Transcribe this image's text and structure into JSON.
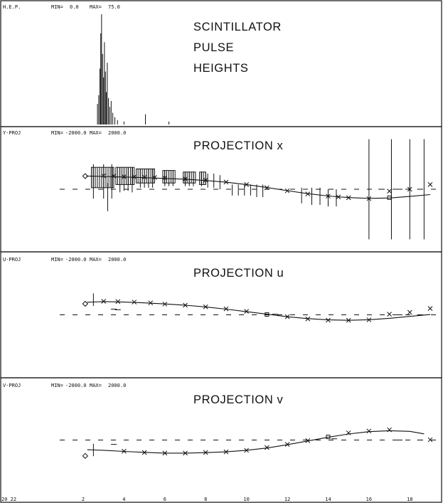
{
  "figure": {
    "x_axis": {
      "min": 2,
      "max": 19,
      "ticks": [
        2,
        4,
        6,
        8,
        10,
        12,
        14,
        16,
        18
      ],
      "left_label": "20 22"
    }
  },
  "chart_data": [
    {
      "type": "bar",
      "header": {
        "name": "H.E.P.",
        "min_label": "MIN=",
        "min": "0.0",
        "max_label": "MAX=",
        "max": "75.0"
      },
      "title_lines": [
        "SCINTILLATOR",
        "PULSE",
        "HEIGHTS"
      ],
      "ylim": [
        0,
        75
      ],
      "bars": [
        {
          "x": 2.7,
          "y": 14
        },
        {
          "x": 2.76,
          "y": 20
        },
        {
          "x": 2.82,
          "y": 38
        },
        {
          "x": 2.86,
          "y": 62
        },
        {
          "x": 2.9,
          "y": 75
        },
        {
          "x": 2.95,
          "y": 48
        },
        {
          "x": 3.0,
          "y": 32
        },
        {
          "x": 3.04,
          "y": 56
        },
        {
          "x": 3.09,
          "y": 36
        },
        {
          "x": 3.13,
          "y": 22
        },
        {
          "x": 3.18,
          "y": 42
        },
        {
          "x": 3.24,
          "y": 18
        },
        {
          "x": 3.3,
          "y": 12
        },
        {
          "x": 3.37,
          "y": 16
        },
        {
          "x": 3.45,
          "y": 8
        },
        {
          "x": 3.55,
          "y": 5
        },
        {
          "x": 3.68,
          "y": 3
        },
        {
          "x": 4.0,
          "y": 2
        },
        {
          "x": 5.05,
          "y": 7
        },
        {
          "x": 6.2,
          "y": 2
        }
      ]
    },
    {
      "type": "line",
      "header": {
        "name": "Y-PROJ",
        "min_label": "MIN=",
        "min": "-2000.0",
        "max_label": "MAX=",
        "max": "2000.0"
      },
      "title": "PROJECTION x",
      "ylim": [
        -2000,
        2000
      ],
      "zero_line": 0,
      "curve": [
        {
          "x": 2.2,
          "y": 420
        },
        {
          "x": 3.0,
          "y": 410
        },
        {
          "x": 4.0,
          "y": 390
        },
        {
          "x": 5.0,
          "y": 370
        },
        {
          "x": 6.0,
          "y": 345
        },
        {
          "x": 7.0,
          "y": 320
        },
        {
          "x": 8.0,
          "y": 280
        },
        {
          "x": 9.0,
          "y": 225
        },
        {
          "x": 10.0,
          "y": 150
        },
        {
          "x": 11.0,
          "y": 55
        },
        {
          "x": 12.0,
          "y": -45
        },
        {
          "x": 13.0,
          "y": -140
        },
        {
          "x": 14.0,
          "y": -215
        },
        {
          "x": 15.0,
          "y": -265
        },
        {
          "x": 16.0,
          "y": -290
        },
        {
          "x": 17.0,
          "y": -280
        },
        {
          "x": 18.0,
          "y": -230
        },
        {
          "x": 19.0,
          "y": -170
        }
      ],
      "points_x": [
        {
          "x": 3.0,
          "y": 430
        },
        {
          "x": 3.5,
          "y": 420
        },
        {
          "x": 4.0,
          "y": 400
        },
        {
          "x": 4.5,
          "y": 395
        },
        {
          "x": 5.0,
          "y": 385
        },
        {
          "x": 5.5,
          "y": 375
        },
        {
          "x": 6.0,
          "y": 360
        },
        {
          "x": 7.0,
          "y": 330
        },
        {
          "x": 8.0,
          "y": 290
        },
        {
          "x": 9.0,
          "y": 230
        },
        {
          "x": 10.0,
          "y": 150
        },
        {
          "x": 11.0,
          "y": 50
        },
        {
          "x": 12.0,
          "y": -50
        },
        {
          "x": 13.0,
          "y": -150
        },
        {
          "x": 14.0,
          "y": -220
        },
        {
          "x": 14.5,
          "y": -245
        },
        {
          "x": 15.0,
          "y": -270
        },
        {
          "x": 16.0,
          "y": -300
        },
        {
          "x": 17.0,
          "y": -60
        },
        {
          "x": 18.0,
          "y": 0
        },
        {
          "x": 19.0,
          "y": 150
        }
      ],
      "points_square": [
        {
          "x": 17.0,
          "y": -270
        }
      ],
      "points_diamond": [
        {
          "x": 2.1,
          "y": 420
        }
      ],
      "dash_marks": [
        {
          "x": 2.3,
          "y": 420
        },
        {
          "x": 16.6,
          "y": 0
        },
        {
          "x": 17.5,
          "y": 0
        },
        {
          "x": 18.5,
          "y": 0
        }
      ],
      "error_bars": [
        {
          "x": 2.5,
          "lo": -300,
          "hi": 800
        },
        {
          "x": 3.0,
          "lo": -300,
          "hi": 800
        },
        {
          "x": 3.2,
          "lo": -700,
          "hi": 200
        },
        {
          "x": 3.4,
          "lo": -300,
          "hi": 800
        },
        {
          "x": 3.8,
          "lo": -100,
          "hi": 700
        },
        {
          "x": 4.0,
          "lo": -50,
          "hi": 700
        },
        {
          "x": 4.2,
          "lo": -50,
          "hi": 700
        },
        {
          "x": 4.4,
          "lo": -100,
          "hi": 700
        },
        {
          "x": 4.8,
          "lo": 50,
          "hi": 650
        },
        {
          "x": 5.0,
          "lo": 50,
          "hi": 650
        },
        {
          "x": 5.2,
          "lo": 50,
          "hi": 650
        },
        {
          "x": 5.4,
          "lo": 50,
          "hi": 650
        },
        {
          "x": 6.0,
          "lo": 100,
          "hi": 600
        },
        {
          "x": 6.2,
          "lo": 100,
          "hi": 600
        },
        {
          "x": 6.4,
          "lo": 100,
          "hi": 600
        },
        {
          "x": 7.0,
          "lo": 100,
          "hi": 550
        },
        {
          "x": 7.2,
          "lo": 100,
          "hi": 550
        },
        {
          "x": 7.4,
          "lo": 100,
          "hi": 550
        },
        {
          "x": 7.8,
          "lo": 100,
          "hi": 550
        },
        {
          "x": 8.1,
          "lo": 50,
          "hi": 500
        },
        {
          "x": 8.4,
          "lo": 50,
          "hi": 500
        },
        {
          "x": 8.7,
          "lo": 0,
          "hi": 450
        },
        {
          "x": 9.3,
          "lo": -200,
          "hi": 150
        },
        {
          "x": 9.6,
          "lo": -200,
          "hi": 150
        },
        {
          "x": 9.9,
          "lo": -200,
          "hi": 150
        },
        {
          "x": 10.2,
          "lo": -200,
          "hi": 150
        },
        {
          "x": 10.5,
          "lo": -250,
          "hi": 150
        },
        {
          "x": 10.8,
          "lo": -250,
          "hi": 150
        },
        {
          "x": 12.7,
          "lo": -450,
          "hi": 50
        },
        {
          "x": 13.2,
          "lo": -500,
          "hi": 50
        },
        {
          "x": 13.6,
          "lo": -500,
          "hi": 50
        },
        {
          "x": 14.0,
          "lo": -550,
          "hi": 0
        },
        {
          "x": 14.4,
          "lo": -550,
          "hi": 0
        },
        {
          "x": 16.0,
          "lo": -1600,
          "hi": 1600
        },
        {
          "x": 17.1,
          "lo": -1600,
          "hi": 1600
        },
        {
          "x": 18.0,
          "lo": -1600,
          "hi": 1600
        },
        {
          "x": 18.7,
          "lo": -1600,
          "hi": 1600
        }
      ],
      "bracket_regions": [
        {
          "x0": 2.4,
          "x1": 3.5,
          "y0": 50,
          "y1": 700
        },
        {
          "x0": 3.6,
          "x1": 4.5,
          "y0": 150,
          "y1": 700
        },
        {
          "x0": 4.6,
          "x1": 5.5,
          "y0": 200,
          "y1": 650
        },
        {
          "x0": 5.9,
          "x1": 6.5,
          "y0": 200,
          "y1": 600
        },
        {
          "x0": 6.9,
          "x1": 7.5,
          "y0": 200,
          "y1": 550
        },
        {
          "x0": 7.7,
          "x1": 8.0,
          "y0": 150,
          "y1": 550
        }
      ]
    },
    {
      "type": "line",
      "header": {
        "name": "U-PROJ",
        "min_label": "MIN=",
        "min": "-2000.0",
        "max_label": "MAX=",
        "max": "2000.0"
      },
      "title": "PROJECTION u",
      "ylim": [
        -2000,
        2000
      ],
      "zero_line": 0,
      "curve": [
        {
          "x": 2.2,
          "y": 400
        },
        {
          "x": 3.0,
          "y": 420
        },
        {
          "x": 4.0,
          "y": 405
        },
        {
          "x": 5.0,
          "y": 380
        },
        {
          "x": 6.0,
          "y": 345
        },
        {
          "x": 7.0,
          "y": 305
        },
        {
          "x": 8.0,
          "y": 250
        },
        {
          "x": 9.0,
          "y": 180
        },
        {
          "x": 10.0,
          "y": 100
        },
        {
          "x": 11.0,
          "y": 20
        },
        {
          "x": 12.0,
          "y": -60
        },
        {
          "x": 13.0,
          "y": -120
        },
        {
          "x": 14.0,
          "y": -160
        },
        {
          "x": 15.0,
          "y": -175
        },
        {
          "x": 16.0,
          "y": -155
        },
        {
          "x": 17.0,
          "y": -110
        },
        {
          "x": 18.0,
          "y": -50
        },
        {
          "x": 19.0,
          "y": 10
        }
      ],
      "points_x": [
        {
          "x": 3.0,
          "y": 430
        },
        {
          "x": 3.7,
          "y": 420
        },
        {
          "x": 4.5,
          "y": 405
        },
        {
          "x": 5.3,
          "y": 380
        },
        {
          "x": 6.0,
          "y": 340
        },
        {
          "x": 7.0,
          "y": 305
        },
        {
          "x": 8.0,
          "y": 255
        },
        {
          "x": 9.0,
          "y": 190
        },
        {
          "x": 10.0,
          "y": 110
        },
        {
          "x": 12.0,
          "y": -60
        },
        {
          "x": 13.0,
          "y": -130
        },
        {
          "x": 14.0,
          "y": -170
        },
        {
          "x": 15.0,
          "y": -175
        },
        {
          "x": 16.0,
          "y": -160
        },
        {
          "x": 17.0,
          "y": 20
        },
        {
          "x": 18.0,
          "y": 80
        },
        {
          "x": 19.0,
          "y": 200
        }
      ],
      "points_square": [
        {
          "x": 11.0,
          "y": 10
        }
      ],
      "points_diamond": [
        {
          "x": 2.1,
          "y": 350
        }
      ],
      "dash_marks": [
        {
          "x": 3.5,
          "y": 180
        },
        {
          "x": 3.7,
          "y": 160
        },
        {
          "x": 11.4,
          "y": 20
        },
        {
          "x": 17.5,
          "y": 0
        },
        {
          "x": 18.5,
          "y": 0
        }
      ],
      "error_bars": [
        {
          "x": 2.5,
          "lo": 280,
          "hi": 680
        }
      ],
      "bracket_regions": []
    },
    {
      "type": "line",
      "header": {
        "name": "V-PROJ",
        "min_label": "MIN=",
        "min": "-2000.0",
        "max_label": "MAX=",
        "max": "2000.0"
      },
      "title": "PROJECTION v",
      "ylim": [
        -2000,
        2000
      ],
      "zero_line": 0,
      "curve": [
        {
          "x": 2.2,
          "y": -310
        },
        {
          "x": 3.0,
          "y": -330
        },
        {
          "x": 4.0,
          "y": -365
        },
        {
          "x": 5.0,
          "y": -395
        },
        {
          "x": 6.0,
          "y": -420
        },
        {
          "x": 7.0,
          "y": -420
        },
        {
          "x": 8.0,
          "y": -405
        },
        {
          "x": 9.0,
          "y": -380
        },
        {
          "x": 10.0,
          "y": -330
        },
        {
          "x": 11.0,
          "y": -255
        },
        {
          "x": 12.0,
          "y": -150
        },
        {
          "x": 13.0,
          "y": -30
        },
        {
          "x": 14.0,
          "y": 90
        },
        {
          "x": 15.0,
          "y": 195
        },
        {
          "x": 16.0,
          "y": 270
        },
        {
          "x": 17.0,
          "y": 300
        },
        {
          "x": 18.0,
          "y": 280
        },
        {
          "x": 18.7,
          "y": 200
        }
      ],
      "points_x": [
        {
          "x": 4.0,
          "y": -360
        },
        {
          "x": 5.0,
          "y": -400
        },
        {
          "x": 6.0,
          "y": -420
        },
        {
          "x": 7.0,
          "y": -420
        },
        {
          "x": 8.0,
          "y": -400
        },
        {
          "x": 9.0,
          "y": -380
        },
        {
          "x": 10.0,
          "y": -330
        },
        {
          "x": 11.0,
          "y": -240
        },
        {
          "x": 12.0,
          "y": -140
        },
        {
          "x": 13.0,
          "y": -20
        },
        {
          "x": 15.0,
          "y": 230
        },
        {
          "x": 16.0,
          "y": 290
        },
        {
          "x": 17.0,
          "y": 330
        },
        {
          "x": 19.0,
          "y": 10
        }
      ],
      "points_square": [
        {
          "x": 14.0,
          "y": 100
        }
      ],
      "points_diamond": [
        {
          "x": 2.1,
          "y": -510
        }
      ],
      "dash_marks": [
        {
          "x": 3.5,
          "y": -140
        },
        {
          "x": 14.3,
          "y": 40
        },
        {
          "x": 17.5,
          "y": 0
        },
        {
          "x": 18.5,
          "y": 0
        }
      ],
      "error_bars": [
        {
          "x": 2.5,
          "lo": -520,
          "hi": -120
        }
      ],
      "bracket_regions": []
    }
  ]
}
